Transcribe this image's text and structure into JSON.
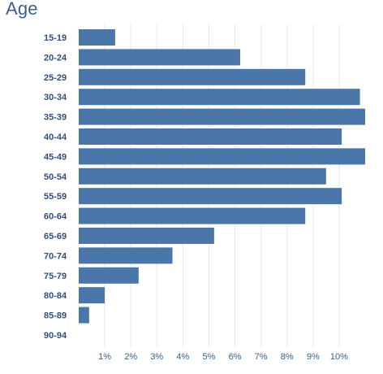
{
  "chart_data": {
    "type": "bar",
    "orientation": "horizontal",
    "title": "Age",
    "xlabel": "",
    "ylabel": "",
    "categories": [
      "15-19",
      "20-24",
      "25-29",
      "30-34",
      "35-39",
      "40-44",
      "45-49",
      "50-54",
      "55-59",
      "60-64",
      "65-69",
      "70-74",
      "75-79",
      "80-84",
      "85-89",
      "90-94"
    ],
    "values": [
      1.4,
      6.2,
      8.7,
      10.8,
      11.0,
      10.1,
      11.0,
      9.5,
      10.1,
      8.7,
      5.2,
      3.6,
      2.3,
      1.0,
      0.4,
      0.0
    ],
    "unit": "%",
    "xticks": [
      "1%",
      "2%",
      "3%",
      "4%",
      "5%",
      "6%",
      "7%",
      "8%",
      "9%",
      "10%"
    ],
    "xlim": [
      0,
      11
    ],
    "grid": "vertical",
    "bar_color": "#4a76aa",
    "grid_color": "#e6e6e6",
    "label_color": "#2f4f7f"
  }
}
